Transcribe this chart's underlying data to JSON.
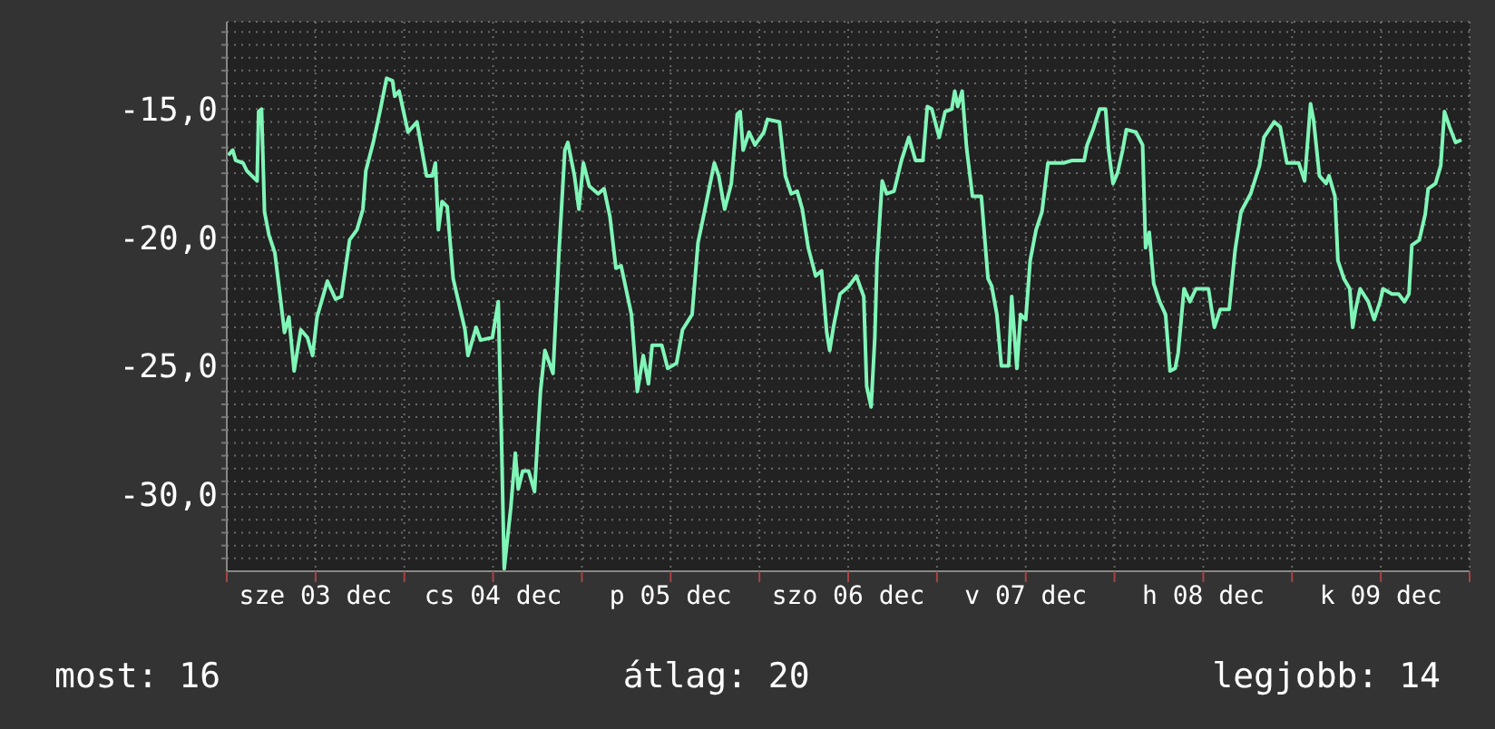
{
  "chart_data": {
    "type": "line",
    "x": [
      "--12-03T00:12",
      "--12-03T00:48",
      "--12-03T01:12",
      "--12-03T02:12",
      "--12-03T02:42",
      "--12-03T04:06",
      "--12-03T04:18",
      "--12-03T04:42",
      "--12-03T05:06",
      "--12-03T05:42",
      "--12-03T06:30",
      "--12-03T07:18",
      "--12-03T07:48",
      "--12-03T08:24",
      "--12-03T09:06",
      "--12-03T10:00",
      "--12-03T10:54",
      "--12-03T11:36",
      "--12-03T12:12",
      "--12-03T13:36",
      "--12-03T14:42",
      "--12-03T15:30",
      "--12-03T16:36",
      "--12-03T17:36",
      "--12-03T18:24",
      "--12-03T18:48",
      "--12-03T19:48",
      "--12-03T20:42",
      "--12-03T21:36",
      "--12-03T22:24",
      "--12-03T22:42",
      "--12-03T23:18",
      "--12-04T00:30",
      "--12-04T01:42",
      "--12-04T03:00",
      "--12-04T03:48",
      "--12-04T04:12",
      "--12-04T04:36",
      "--12-04T05:06",
      "--12-04T05:48",
      "--12-04T06:36",
      "--12-04T07:24",
      "--12-04T08:12",
      "--12-04T08:36",
      "--12-04T09:42",
      "--12-04T10:18",
      "--12-04T11:54",
      "--12-04T12:42",
      "--12-04T13:06",
      "--12-04T13:30",
      "--12-04T14:24",
      "--12-04T15:00",
      "--12-04T15:24",
      "--12-04T16:00",
      "--12-04T16:48",
      "--12-04T17:36",
      "--12-04T18:24",
      "--12-04T19:00",
      "--12-04T20:06",
      "--12-04T20:54",
      "--12-04T21:42",
      "--12-04T22:06",
      "--12-04T23:00",
      "--12-04T23:36",
      "--12-05T00:12",
      "--12-05T01:00",
      "--12-05T02:12",
      "--12-05T03:00",
      "--12-05T03:48",
      "--12-05T04:36",
      "--12-05T05:18",
      "--12-05T06:42",
      "--12-05T07:30",
      "--12-05T08:18",
      "--12-05T09:00",
      "--12-05T09:30",
      "--12-05T10:48",
      "--12-05T11:36",
      "--12-05T12:48",
      "--12-05T13:36",
      "--12-05T14:54",
      "--12-05T15:42",
      "--12-05T16:30",
      "--12-05T17:54",
      "--12-05T18:30",
      "--12-05T19:18",
      "--12-05T20:12",
      "--12-05T21:00",
      "--12-05T21:24",
      "--12-05T21:48",
      "--12-05T22:36",
      "--12-05T23:24",
      "--12-06T00:36",
      "--12-06T01:06",
      "--12-06T02:42",
      "--12-06T03:30",
      "--12-06T04:18",
      "--12-06T05:06",
      "--12-06T05:48",
      "--12-06T06:36",
      "--12-06T07:36",
      "--12-06T08:24",
      "--12-06T09:06",
      "--12-06T09:30",
      "--12-06T10:00",
      "--12-06T10:54",
      "--12-06T12:06",
      "--12-06T13:06",
      "--12-06T14:06",
      "--12-06T14:30",
      "--12-06T15:06",
      "--12-06T15:36",
      "--12-06T15:54",
      "--12-06T16:36",
      "--12-06T17:12",
      "--12-06T18:12",
      "--12-06T19:12",
      "--12-06T20:12",
      "--12-06T21:06",
      "--12-06T22:06",
      "--12-06T22:42",
      "--12-06T23:18",
      "--12-07T00:18",
      "--12-07T01:06",
      "--12-07T02:00",
      "--12-07T02:24",
      "--12-07T02:48",
      "--12-07T03:24",
      "--12-07T04:00",
      "--12-07T04:48",
      "--12-07T06:00",
      "--12-07T06:54",
      "--12-07T07:24",
      "--12-07T08:06",
      "--12-07T08:42",
      "--12-07T09:42",
      "--12-07T10:06",
      "--12-07T10:48",
      "--12-07T11:18",
      "--12-07T12:00",
      "--12-07T12:36",
      "--12-07T13:24",
      "--12-07T14:12",
      "--12-07T15:00",
      "--12-07T17:06",
      "--12-07T18:18",
      "--12-07T19:54",
      "--12-07T20:18",
      "--12-07T21:06",
      "--12-07T22:00",
      "--12-07T22:48",
      "--12-07T23:12",
      "--12-07T23:48",
      "--12-08T00:24",
      "--12-08T01:06",
      "--12-08T01:36",
      "--12-08T02:54",
      "--12-08T03:48",
      "--12-08T04:12",
      "--12-08T04:42",
      "--12-08T05:18",
      "--12-08T06:06",
      "--12-08T06:54",
      "--12-08T07:30",
      "--12-08T08:12",
      "--12-08T08:36",
      "--12-08T09:24",
      "--12-08T10:12",
      "--12-08T11:00",
      "--12-08T12:42",
      "--12-08T13:30",
      "--12-08T14:18",
      "--12-08T15:30",
      "--12-08T16:18",
      "--12-08T17:06",
      "--12-08T18:24",
      "--12-08T19:36",
      "--12-08T20:12",
      "--12-08T21:36",
      "--12-08T22:24",
      "--12-08T23:18",
      "--12-09T00:54",
      "--12-09T01:42",
      "--12-09T02:30",
      "--12-09T02:54",
      "--12-09T03:42",
      "--12-09T04:36",
      "--12-09T05:00",
      "--12-09T05:48",
      "--12-09T06:12",
      "--12-09T07:00",
      "--12-09T07:48",
      "--12-09T08:12",
      "--12-09T08:36",
      "--12-09T09:12",
      "--12-09T10:18",
      "--12-09T11:06",
      "--12-09T11:54",
      "--12-09T12:18",
      "--12-09T13:30",
      "--12-09T14:24",
      "--12-09T15:12",
      "--12-09T15:48",
      "--12-09T16:12",
      "--12-09T17:12",
      "--12-09T18:00",
      "--12-09T18:24",
      "--12-09T19:24",
      "--12-09T20:06",
      "--12-09T20:36",
      "--12-09T21:18",
      "--12-09T22:06",
      "--12-09T22:54"
    ],
    "series": [
      {
        "color": "#80f5b8",
        "values": [
          -16.8,
          -16.6,
          -17.0,
          -17.1,
          -17.4,
          -17.8,
          -15.1,
          -15.0,
          -19.0,
          -19.9,
          -20.6,
          -22.5,
          -23.7,
          -23.1,
          -25.2,
          -23.6,
          -23.9,
          -24.6,
          -23.1,
          -21.7,
          -22.4,
          -22.3,
          -20.1,
          -19.7,
          -18.9,
          -17.4,
          -16.3,
          -15.1,
          -13.8,
          -13.9,
          -14.5,
          -14.3,
          -15.9,
          -15.5,
          -17.6,
          -17.6,
          -17.1,
          -19.7,
          -18.6,
          -18.8,
          -21.6,
          -22.6,
          -23.6,
          -24.6,
          -23.5,
          -24.0,
          -23.9,
          -22.5,
          -27.4,
          -32.9,
          -30.5,
          -28.4,
          -29.8,
          -29.1,
          -29.1,
          -29.9,
          -26.0,
          -24.4,
          -25.3,
          -20.6,
          -16.6,
          -16.3,
          -17.6,
          -18.9,
          -17.1,
          -18.0,
          -18.3,
          -18.1,
          -19.2,
          -21.2,
          -21.1,
          -23.0,
          -26.0,
          -24.6,
          -25.7,
          -24.2,
          -24.2,
          -25.1,
          -24.9,
          -23.6,
          -23.0,
          -20.2,
          -19.1,
          -17.1,
          -17.6,
          -18.9,
          -17.9,
          -15.2,
          -15.1,
          -16.6,
          -15.9,
          -16.4,
          -15.9,
          -15.4,
          -15.5,
          -17.6,
          -18.3,
          -18.2,
          -18.9,
          -20.4,
          -21.5,
          -21.3,
          -23.7,
          -24.4,
          -23.5,
          -22.2,
          -21.9,
          -21.5,
          -22.3,
          -25.8,
          -26.6,
          -23.9,
          -20.9,
          -17.8,
          -18.3,
          -18.2,
          -17.0,
          -16.1,
          -17.0,
          -17.0,
          -14.9,
          -15.0,
          -16.1,
          -15.1,
          -15.0,
          -14.3,
          -14.9,
          -14.3,
          -16.5,
          -18.4,
          -18.4,
          -21.6,
          -21.9,
          -23.0,
          -25.0,
          -25.0,
          -22.3,
          -25.1,
          -23.0,
          -23.2,
          -20.9,
          -19.7,
          -19.0,
          -17.1,
          -17.1,
          -17.0,
          -17.0,
          -16.4,
          -15.8,
          -15.0,
          -15.0,
          -16.6,
          -17.9,
          -17.5,
          -16.6,
          -15.8,
          -15.9,
          -16.4,
          -20.4,
          -19.8,
          -21.8,
          -22.5,
          -23.0,
          -25.2,
          -25.1,
          -24.5,
          -22.0,
          -22.5,
          -22.0,
          -22.0,
          -23.5,
          -22.8,
          -22.8,
          -20.5,
          -19.0,
          -18.3,
          -17.2,
          -16.1,
          -15.5,
          -15.7,
          -17.1,
          -17.1,
          -17.8,
          -14.8,
          -15.4,
          -17.6,
          -17.9,
          -17.6,
          -18.4,
          -20.9,
          -21.6,
          -22.0,
          -23.5,
          -22.8,
          -22.0,
          -22.5,
          -23.2,
          -22.5,
          -22.0,
          -22.2,
          -22.2,
          -22.5,
          -22.2,
          -20.3,
          -20.1,
          -19.1,
          -18.1,
          -17.9,
          -17.2,
          -15.1,
          -15.7,
          -16.3,
          -16.2
        ]
      }
    ],
    "xlim": [
      "--12-03T00:00",
      "--12-10T00:00"
    ],
    "xticks": [
      {
        "value": "--12-03T00:00",
        "label": null
      },
      {
        "value": "--12-03T12:00",
        "label": "sze 03 dec"
      },
      {
        "value": "--12-04T00:00",
        "label": null
      },
      {
        "value": "--12-04T12:00",
        "label": "cs 04 dec"
      },
      {
        "value": "--12-05T00:00",
        "label": null
      },
      {
        "value": "--12-05T12:00",
        "label": "p 05 dec"
      },
      {
        "value": "--12-06T00:00",
        "label": null
      },
      {
        "value": "--12-06T12:00",
        "label": "szo 06 dec"
      },
      {
        "value": "--12-07T00:00",
        "label": null
      },
      {
        "value": "--12-07T12:00",
        "label": "v 07 dec"
      },
      {
        "value": "--12-08T00:00",
        "label": null
      },
      {
        "value": "--12-08T12:00",
        "label": "h 08 dec"
      },
      {
        "value": "--12-09T00:00",
        "label": null
      },
      {
        "value": "--12-09T12:00",
        "label": "k 09 dec"
      },
      {
        "value": "--12-10T00:00",
        "label": null
      }
    ],
    "ylim": [
      -33,
      -11.6
    ],
    "yticks": [
      {
        "value": -32.5,
        "label": null
      },
      {
        "value": -32,
        "label": null
      },
      {
        "value": -31.5,
        "label": null
      },
      {
        "value": -31,
        "label": null
      },
      {
        "value": -30.5,
        "label": null
      },
      {
        "value": -30,
        "label": "-30,0"
      },
      {
        "value": -29.5,
        "label": null
      },
      {
        "value": -29,
        "label": null
      },
      {
        "value": -28.5,
        "label": null
      },
      {
        "value": -28,
        "label": null
      },
      {
        "value": -27.5,
        "label": null
      },
      {
        "value": -27,
        "label": null
      },
      {
        "value": -26.5,
        "label": null
      },
      {
        "value": -26,
        "label": null
      },
      {
        "value": -25.5,
        "label": null
      },
      {
        "value": -25,
        "label": "-25,0"
      },
      {
        "value": -24.5,
        "label": null
      },
      {
        "value": -24,
        "label": null
      },
      {
        "value": -23.5,
        "label": null
      },
      {
        "value": -23,
        "label": null
      },
      {
        "value": -22.5,
        "label": null
      },
      {
        "value": -22,
        "label": null
      },
      {
        "value": -21.5,
        "label": null
      },
      {
        "value": -21,
        "label": null
      },
      {
        "value": -20.5,
        "label": null
      },
      {
        "value": -20,
        "label": "-20,0"
      },
      {
        "value": -19.5,
        "label": null
      },
      {
        "value": -19,
        "label": null
      },
      {
        "value": -18.5,
        "label": null
      },
      {
        "value": -18,
        "label": null
      },
      {
        "value": -17.5,
        "label": null
      },
      {
        "value": -17,
        "label": null
      },
      {
        "value": -16.5,
        "label": null
      },
      {
        "value": -16,
        "label": null
      },
      {
        "value": -15.5,
        "label": null
      },
      {
        "value": -15,
        "label": "-15,0"
      },
      {
        "value": -14.5,
        "label": null
      },
      {
        "value": -14,
        "label": null
      },
      {
        "value": -13.5,
        "label": null
      },
      {
        "value": -13,
        "label": null
      },
      {
        "value": -12.5,
        "label": null
      },
      {
        "value": -12,
        "label": null
      }
    ],
    "grid": true,
    "legend": false,
    "marker": "none",
    "line_style": "solid",
    "annotations": [
      "most: 16",
      "átlag: 20",
      "legjobb: 14"
    ]
  }
}
